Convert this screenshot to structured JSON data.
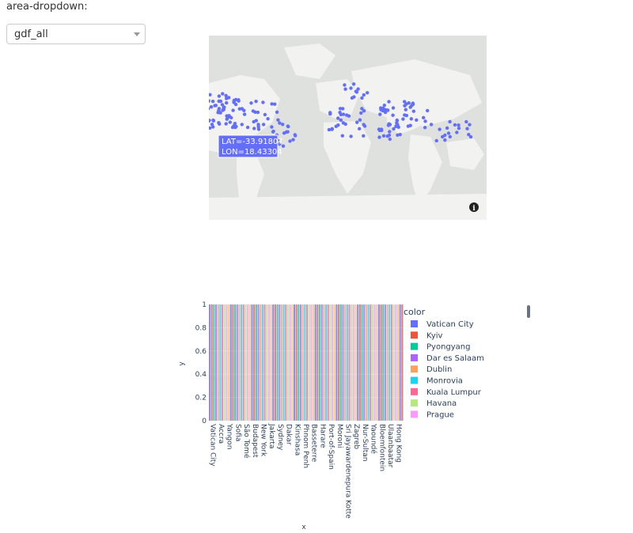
{
  "control": {
    "label": "area-dropdown:",
    "selected": "gdf_all"
  },
  "map": {
    "hover": {
      "lat_text": "LAT=-33.91807",
      "lon_text": "LON=18.43304"
    },
    "marker_color": "#636efa",
    "info_icon": "info-icon"
  },
  "chart_data": {
    "type": "bar",
    "categories": [
      "Vatican City",
      "Accra",
      "Yangon",
      "Sofia",
      "São Tomé",
      "Budapest",
      "New York",
      "Jakarta",
      "Sydney",
      "Dakar",
      "Kinshasa",
      "Phnom Penh",
      "Basseterre",
      "Harare",
      "Port-of-Spain",
      "Moroni",
      "Sri Jayawardenepura Kotte",
      "Zagreb",
      "Nur-Sultan",
      "Yaoundé",
      "Bloemfontein",
      "Ulaanbaatar",
      "Hong Kong"
    ],
    "values": [
      1,
      1,
      1,
      1,
      1,
      1,
      1,
      1,
      1,
      1,
      1,
      1,
      1,
      1,
      1,
      1,
      1,
      1,
      1,
      1,
      1,
      1,
      1
    ],
    "xlabel": "x",
    "ylabel": "y",
    "ylim": [
      0,
      1
    ],
    "yticks": [
      "0",
      "0.2",
      "0.4",
      "0.6",
      "0.8",
      "1"
    ],
    "legend_title": "color",
    "legend": [
      {
        "name": "Vatican City",
        "color": "#636efa"
      },
      {
        "name": "Kyiv",
        "color": "#ef553b"
      },
      {
        "name": "Pyongyang",
        "color": "#00cc96"
      },
      {
        "name": "Dar es Salaam",
        "color": "#ab63fa"
      },
      {
        "name": "Dublin",
        "color": "#ffa15a"
      },
      {
        "name": "Monrovia",
        "color": "#19d3f3"
      },
      {
        "name": "Kuala Lumpur",
        "color": "#ff6692"
      },
      {
        "name": "Havana",
        "color": "#b6e880"
      },
      {
        "name": "Prague",
        "color": "#ff97ff"
      }
    ],
    "bar_palette": [
      "#636efa",
      "#ef553b",
      "#00cc96",
      "#ab63fa",
      "#ffa15a",
      "#19d3f3",
      "#ff6692",
      "#b6e880",
      "#ff97ff",
      "#fecb52"
    ]
  }
}
